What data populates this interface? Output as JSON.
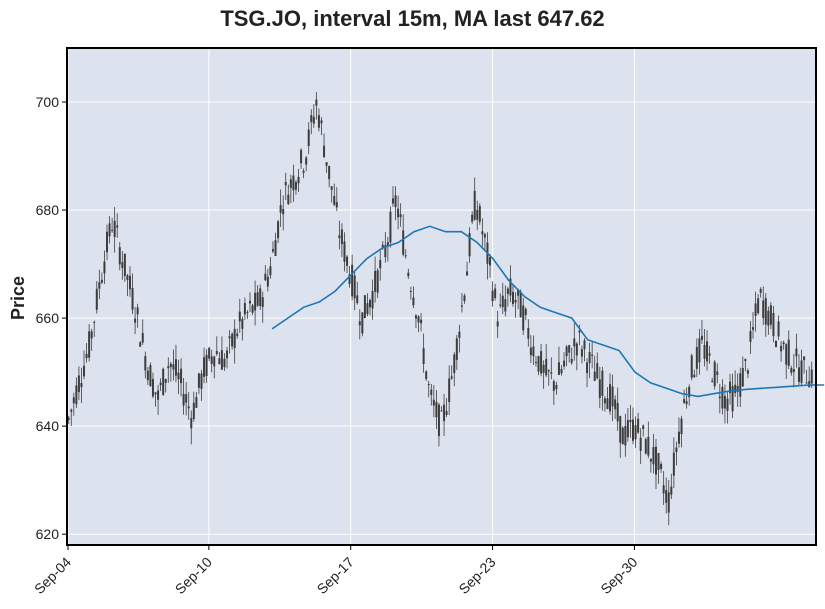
{
  "chart_data": {
    "type": "candlestick",
    "title": "TSG.JO, interval 15m, MA last 647.62",
    "xlabel": "",
    "ylabel": "Price",
    "ylim": [
      618,
      710
    ],
    "yticks": [
      620,
      640,
      660,
      680,
      700
    ],
    "xticks": [
      "Sep-04",
      "Sep-10",
      "Sep-17",
      "Sep-23",
      "Sep-30"
    ],
    "grid": true,
    "colors": {
      "plot_background": "#dce2ee",
      "grid": "#ffffff",
      "candle": "#3c3c3c",
      "moving_average": "#1f77b4",
      "frame": "#000000"
    },
    "price_path": {
      "description_points": [
        [
          0,
          640
        ],
        [
          2,
          648
        ],
        [
          4,
          655
        ],
        [
          6,
          668
        ],
        [
          8,
          678
        ],
        [
          10,
          670
        ],
        [
          12,
          662
        ],
        [
          14,
          652
        ],
        [
          16,
          645
        ],
        [
          18,
          652
        ],
        [
          20,
          648
        ],
        [
          22,
          642
        ],
        [
          24,
          650
        ],
        [
          26,
          654
        ],
        [
          28,
          652
        ],
        [
          30,
          658
        ],
        [
          32,
          661
        ],
        [
          34,
          663
        ],
        [
          36,
          670
        ],
        [
          38,
          682
        ],
        [
          40,
          686
        ],
        [
          42,
          690
        ],
        [
          44,
          700
        ],
        [
          46,
          688
        ],
        [
          48,
          676
        ],
        [
          50,
          668
        ],
        [
          52,
          660
        ],
        [
          54,
          665
        ],
        [
          56,
          672
        ],
        [
          58,
          682
        ],
        [
          60,
          670
        ],
        [
          62,
          660
        ],
        [
          64,
          645
        ],
        [
          66,
          640
        ],
        [
          68,
          650
        ],
        [
          70,
          665
        ],
        [
          72,
          682
        ],
        [
          74,
          672
        ],
        [
          76,
          660
        ],
        [
          78,
          665
        ],
        [
          80,
          662
        ],
        [
          82,
          655
        ],
        [
          84,
          650
        ],
        [
          86,
          648
        ],
        [
          88,
          652
        ],
        [
          90,
          656
        ],
        [
          92,
          652
        ],
        [
          94,
          648
        ],
        [
          96,
          645
        ],
        [
          98,
          638
        ],
        [
          100,
          640
        ],
        [
          102,
          637
        ],
        [
          104,
          633
        ],
        [
          106,
          626
        ],
        [
          108,
          640
        ],
        [
          110,
          650
        ],
        [
          112,
          655
        ],
        [
          114,
          650
        ],
        [
          116,
          645
        ],
        [
          118,
          646
        ],
        [
          120,
          652
        ],
        [
          122,
          664
        ],
        [
          124,
          660
        ],
        [
          126,
          655
        ],
        [
          128,
          652
        ],
        [
          130,
          650
        ]
      ]
    },
    "moving_average": [
      [
        26,
        658
      ],
      [
        28,
        660
      ],
      [
        30,
        662
      ],
      [
        32,
        663
      ],
      [
        34,
        665
      ],
      [
        36,
        668
      ],
      [
        38,
        671
      ],
      [
        40,
        673
      ],
      [
        42,
        674
      ],
      [
        44,
        676
      ],
      [
        46,
        677
      ],
      [
        48,
        676
      ],
      [
        50,
        676
      ],
      [
        52,
        674
      ],
      [
        54,
        671
      ],
      [
        56,
        667
      ],
      [
        58,
        664
      ],
      [
        60,
        662
      ],
      [
        62,
        661
      ],
      [
        64,
        660
      ],
      [
        66,
        656
      ],
      [
        68,
        655
      ],
      [
        70,
        654
      ],
      [
        72,
        650
      ],
      [
        74,
        648
      ],
      [
        76,
        647
      ],
      [
        78,
        646
      ],
      [
        80,
        645.5
      ],
      [
        82,
        646
      ],
      [
        84,
        646.5
      ],
      [
        86,
        646.8
      ],
      [
        88,
        647
      ],
      [
        90,
        647.2
      ],
      [
        92,
        647.4
      ],
      [
        94,
        647.6
      ],
      [
        96,
        647.62
      ]
    ],
    "x_tick_positions": [
      0,
      25,
      50,
      75,
      100
    ]
  }
}
